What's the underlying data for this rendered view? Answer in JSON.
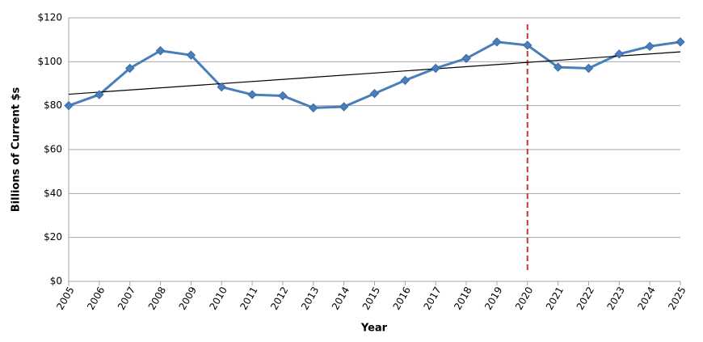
{
  "chart_data": {
    "type": "line",
    "y_label": "Billions of Current $s",
    "x_label": "Year",
    "x": [
      2005,
      2006,
      2007,
      2008,
      2009,
      2010,
      2011,
      2012,
      2013,
      2014,
      2015,
      2016,
      2017,
      2018,
      2019,
      2020,
      2021,
      2022,
      2023,
      2024,
      2025
    ],
    "xlim": [
      2005,
      2025
    ],
    "xticks": [
      2005,
      2006,
      2007,
      2008,
      2009,
      2010,
      2011,
      2012,
      2013,
      2014,
      2015,
      2016,
      2017,
      2018,
      2019,
      2020,
      2021,
      2022,
      2023,
      2024,
      2025
    ],
    "series": [
      {
        "color": "#4a7ebb",
        "values": [
          80,
          85,
          97,
          105,
          103,
          88.5,
          85,
          84.5,
          79,
          79.5,
          85.5,
          91.5,
          97,
          101.5,
          109,
          107.5,
          97.5,
          97,
          103.5,
          107,
          109
        ]
      }
    ],
    "trend": {
      "x": [
        2005,
        2025
      ],
      "values": [
        85.2,
        104.5
      ],
      "color": "#000000"
    },
    "marker_line": {
      "x": 2020,
      "color": "#c0392b"
    },
    "ylim": [
      0,
      120
    ],
    "yticks": [
      {
        "value": 0,
        "label": "$0"
      },
      {
        "value": 20,
        "label": "$20"
      },
      {
        "value": 40,
        "label": "$40"
      },
      {
        "value": 60,
        "label": "$60"
      },
      {
        "value": 80,
        "label": "$80"
      },
      {
        "value": 100,
        "label": "$100"
      },
      {
        "value": 120,
        "label": "$120"
      }
    ],
    "grid": true
  }
}
